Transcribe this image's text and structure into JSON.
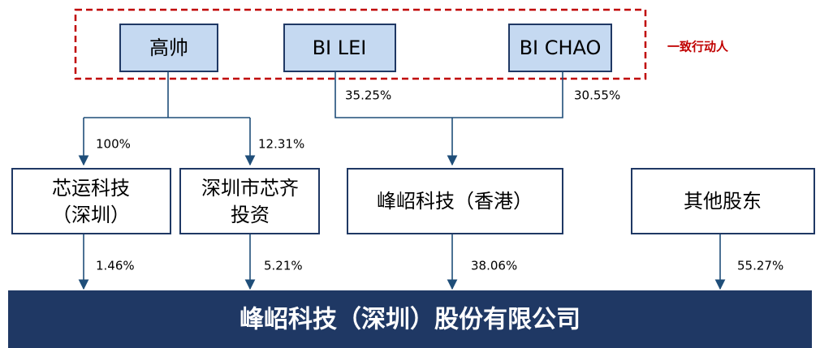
{
  "group_label": "一致行动人",
  "shareholders": [
    {
      "label": "高帅"
    },
    {
      "label": "BI LEI"
    },
    {
      "label": "BI CHAO"
    }
  ],
  "holding_companies": [
    {
      "lines": [
        "芯运科技",
        "（深圳）"
      ]
    },
    {
      "lines": [
        "深圳市芯齐",
        "投资"
      ]
    },
    {
      "lines": [
        "峰岹科技（香港）"
      ]
    },
    {
      "lines": [
        "其他股东"
      ]
    }
  ],
  "edges_top": [
    "100%",
    "12.31%",
    "35.25%",
    "30.55%"
  ],
  "edges_bottom": [
    "1.46%",
    "5.21%",
    "38.06%",
    "55.27%"
  ],
  "company": "峰岹科技（深圳）股份有限公司"
}
